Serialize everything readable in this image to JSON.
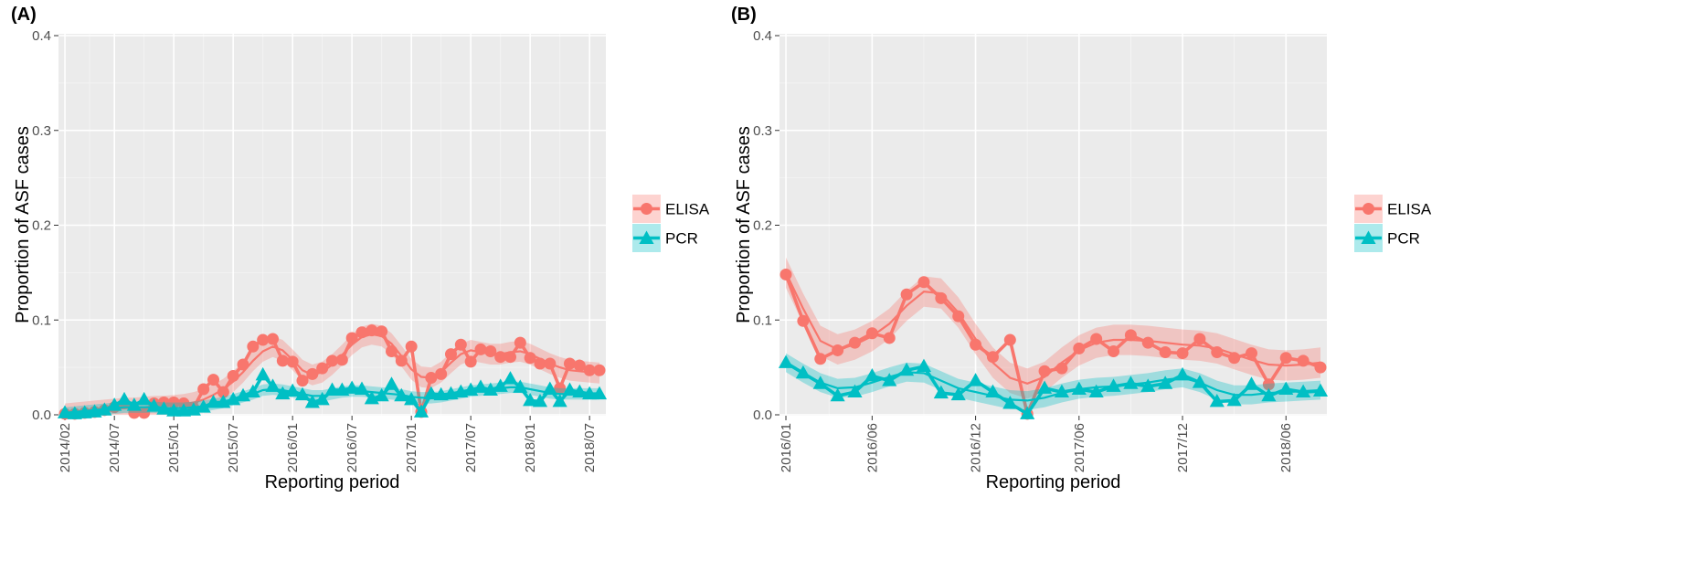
{
  "colors": {
    "ELISA": "#f8766d",
    "PCR": "#00bfc4"
  },
  "chart_data": [
    {
      "panel": "(A)",
      "type": "line",
      "xlabel": "Reporting period",
      "ylabel": "Proportion of ASF cases",
      "xlim": [
        "2014-02",
        "2018-08"
      ],
      "ylim": [
        0,
        0.4
      ],
      "yticks": [
        0.0,
        0.1,
        0.2,
        0.3,
        0.4
      ],
      "ytick_labels": [
        "0.0",
        "0.1",
        "0.2",
        "0.3",
        "0.4"
      ],
      "xticks": [
        "2014-02",
        "2014-07",
        "2015-01",
        "2015-07",
        "2016-01",
        "2016-07",
        "2017-01",
        "2017-07",
        "2018-01",
        "2018-07"
      ],
      "xtick_labels": [
        "2014/02",
        "2014/07",
        "2015/01",
        "2015/07",
        "2016/01",
        "2016/07",
        "2017/01",
        "2017/07",
        "2018/01",
        "2018/07"
      ],
      "grid": true,
      "legend": "right",
      "smooth_band": true,
      "series": [
        {
          "name": "ELISA",
          "marker": "circle",
          "x": [
            "2014-02",
            "2014-03",
            "2014-04",
            "2014-05",
            "2014-06",
            "2014-07",
            "2014-08",
            "2014-09",
            "2014-10",
            "2014-11",
            "2014-12",
            "2015-01",
            "2015-02",
            "2015-03",
            "2015-04",
            "2015-05",
            "2015-06",
            "2015-07",
            "2015-08",
            "2015-09",
            "2015-10",
            "2015-11",
            "2015-12",
            "2016-01",
            "2016-02",
            "2016-03",
            "2016-04",
            "2016-05",
            "2016-06",
            "2016-07",
            "2016-08",
            "2016-09",
            "2016-10",
            "2016-11",
            "2016-12",
            "2017-01",
            "2017-02",
            "2017-03",
            "2017-04",
            "2017-05",
            "2017-06",
            "2017-07",
            "2017-08",
            "2017-09",
            "2017-10",
            "2017-11",
            "2017-12",
            "2018-01",
            "2018-02",
            "2018-03",
            "2018-04",
            "2018-05",
            "2018-06",
            "2018-07",
            "2018-08"
          ],
          "values": [
            0.001,
            0.001,
            0.002,
            0.003,
            0.005,
            0.008,
            0.012,
            0.002,
            0.002,
            0.012,
            0.013,
            0.013,
            0.012,
            0.007,
            0.027,
            0.037,
            0.024,
            0.041,
            0.053,
            0.072,
            0.079,
            0.08,
            0.057,
            0.056,
            0.036,
            0.043,
            0.049,
            0.057,
            0.058,
            0.081,
            0.087,
            0.089,
            0.088,
            0.067,
            0.057,
            0.072,
            0.003,
            0.039,
            0.043,
            0.064,
            0.074,
            0.056,
            0.069,
            0.067,
            0.061,
            0.061,
            0.076,
            0.06,
            0.054,
            0.054,
            0.028,
            0.054,
            0.052,
            0.047,
            0.047
          ],
          "smooth": [
            0.001,
            0.002,
            0.003,
            0.004,
            0.005,
            0.006,
            0.007,
            0.007,
            0.008,
            0.009,
            0.009,
            0.01,
            0.011,
            0.013,
            0.016,
            0.021,
            0.027,
            0.035,
            0.045,
            0.057,
            0.067,
            0.072,
            0.068,
            0.058,
            0.047,
            0.042,
            0.045,
            0.053,
            0.063,
            0.074,
            0.082,
            0.085,
            0.083,
            0.075,
            0.062,
            0.048,
            0.04,
            0.039,
            0.045,
            0.055,
            0.064,
            0.068,
            0.066,
            0.064,
            0.064,
            0.066,
            0.067,
            0.064,
            0.059,
            0.054,
            0.05,
            0.047,
            0.046,
            0.045,
            0.044
          ],
          "band": 0.011
        },
        {
          "name": "PCR",
          "marker": "triangle",
          "x": [
            "2014-02",
            "2014-03",
            "2014-04",
            "2014-05",
            "2014-06",
            "2014-07",
            "2014-08",
            "2014-09",
            "2014-10",
            "2014-11",
            "2014-12",
            "2015-01",
            "2015-02",
            "2015-03",
            "2015-04",
            "2015-05",
            "2015-06",
            "2015-07",
            "2015-08",
            "2015-09",
            "2015-10",
            "2015-11",
            "2015-12",
            "2016-01",
            "2016-02",
            "2016-03",
            "2016-04",
            "2016-05",
            "2016-06",
            "2016-07",
            "2016-08",
            "2016-09",
            "2016-10",
            "2016-11",
            "2016-12",
            "2017-01",
            "2017-02",
            "2017-03",
            "2017-04",
            "2017-05",
            "2017-06",
            "2017-07",
            "2017-08",
            "2017-09",
            "2017-10",
            "2017-11",
            "2017-12",
            "2018-01",
            "2018-02",
            "2018-03",
            "2018-04",
            "2018-05",
            "2018-06",
            "2018-07",
            "2018-08"
          ],
          "values": [
            0.002,
            0.001,
            0.002,
            0.003,
            0.005,
            0.01,
            0.016,
            0.01,
            0.016,
            0.009,
            0.006,
            0.004,
            0.004,
            0.005,
            0.008,
            0.013,
            0.013,
            0.016,
            0.02,
            0.024,
            0.042,
            0.03,
            0.022,
            0.025,
            0.021,
            0.013,
            0.016,
            0.026,
            0.026,
            0.028,
            0.027,
            0.017,
            0.02,
            0.032,
            0.02,
            0.016,
            0.003,
            0.022,
            0.021,
            0.022,
            0.024,
            0.026,
            0.029,
            0.026,
            0.03,
            0.038,
            0.029,
            0.015,
            0.014,
            0.027,
            0.014,
            0.026,
            0.024,
            0.022,
            0.022
          ],
          "smooth": [
            0.002,
            0.003,
            0.004,
            0.005,
            0.006,
            0.007,
            0.008,
            0.008,
            0.008,
            0.008,
            0.007,
            0.007,
            0.007,
            0.008,
            0.009,
            0.011,
            0.013,
            0.016,
            0.019,
            0.022,
            0.026,
            0.027,
            0.026,
            0.024,
            0.022,
            0.02,
            0.02,
            0.022,
            0.024,
            0.025,
            0.025,
            0.024,
            0.023,
            0.022,
            0.021,
            0.019,
            0.018,
            0.018,
            0.019,
            0.021,
            0.023,
            0.025,
            0.026,
            0.027,
            0.028,
            0.029,
            0.029,
            0.027,
            0.025,
            0.023,
            0.022,
            0.022,
            0.022,
            0.022,
            0.022
          ],
          "band": 0.006
        }
      ]
    },
    {
      "panel": "(B)",
      "type": "line",
      "xlabel": "Reporting period",
      "ylabel": "Proportion of ASF cases",
      "xlim": [
        "2016-01",
        "2018-08"
      ],
      "ylim": [
        0,
        0.4
      ],
      "yticks": [
        0.0,
        0.1,
        0.2,
        0.3,
        0.4
      ],
      "ytick_labels": [
        "0.0",
        "0.1",
        "0.2",
        "0.3",
        "0.4"
      ],
      "xticks": [
        "2016-01",
        "2016-06",
        "2016-12",
        "2017-06",
        "2017-12",
        "2018-06"
      ],
      "xtick_labels": [
        "2016/01",
        "2016/06",
        "2016/12",
        "2017/06",
        "2017/12",
        "2018/06"
      ],
      "grid": true,
      "legend": "right",
      "smooth_band": true,
      "series": [
        {
          "name": "ELISA",
          "marker": "circle",
          "x": [
            "2016-01",
            "2016-02",
            "2016-03",
            "2016-04",
            "2016-05",
            "2016-06",
            "2016-07",
            "2016-08",
            "2016-09",
            "2016-10",
            "2016-11",
            "2016-12",
            "2017-01",
            "2017-02",
            "2017-03",
            "2017-04",
            "2017-05",
            "2017-06",
            "2017-07",
            "2017-08",
            "2017-09",
            "2017-10",
            "2017-11",
            "2017-12",
            "2018-01",
            "2018-02",
            "2018-03",
            "2018-04",
            "2018-05",
            "2018-06",
            "2018-07",
            "2018-08"
          ],
          "values": [
            0.148,
            0.099,
            0.059,
            0.068,
            0.076,
            0.086,
            0.081,
            0.127,
            0.14,
            0.123,
            0.104,
            0.074,
            0.061,
            0.079,
            0.001,
            0.046,
            0.049,
            0.07,
            0.08,
            0.067,
            0.084,
            0.076,
            0.066,
            0.065,
            0.08,
            0.066,
            0.06,
            0.065,
            0.032,
            0.06,
            0.057,
            0.05
          ],
          "smooth": [
            0.15,
            0.112,
            0.078,
            0.069,
            0.074,
            0.083,
            0.096,
            0.115,
            0.13,
            0.128,
            0.108,
            0.08,
            0.055,
            0.039,
            0.033,
            0.04,
            0.055,
            0.068,
            0.076,
            0.079,
            0.079,
            0.078,
            0.076,
            0.074,
            0.073,
            0.07,
            0.064,
            0.058,
            0.053,
            0.052,
            0.053,
            0.055
          ],
          "band": 0.016
        },
        {
          "name": "PCR",
          "marker": "triangle",
          "x": [
            "2016-01",
            "2016-02",
            "2016-03",
            "2016-04",
            "2016-05",
            "2016-06",
            "2016-07",
            "2016-08",
            "2016-09",
            "2016-10",
            "2016-11",
            "2016-12",
            "2017-01",
            "2017-02",
            "2017-03",
            "2017-04",
            "2017-05",
            "2017-06",
            "2017-07",
            "2017-08",
            "2017-09",
            "2017-10",
            "2017-11",
            "2017-12",
            "2018-01",
            "2018-02",
            "2018-03",
            "2018-04",
            "2018-05",
            "2018-06",
            "2018-07",
            "2018-08"
          ],
          "values": [
            0.055,
            0.044,
            0.033,
            0.02,
            0.024,
            0.041,
            0.036,
            0.047,
            0.051,
            0.023,
            0.021,
            0.036,
            0.024,
            0.012,
            0.001,
            0.028,
            0.024,
            0.027,
            0.024,
            0.03,
            0.033,
            0.03,
            0.033,
            0.042,
            0.034,
            0.014,
            0.015,
            0.032,
            0.02,
            0.027,
            0.024,
            0.025
          ],
          "smooth": [
            0.055,
            0.044,
            0.034,
            0.028,
            0.029,
            0.034,
            0.04,
            0.045,
            0.044,
            0.036,
            0.028,
            0.024,
            0.02,
            0.016,
            0.015,
            0.018,
            0.023,
            0.027,
            0.029,
            0.03,
            0.032,
            0.034,
            0.037,
            0.039,
            0.034,
            0.026,
            0.021,
            0.021,
            0.023,
            0.024,
            0.025,
            0.026
          ],
          "band": 0.01
        }
      ]
    }
  ]
}
